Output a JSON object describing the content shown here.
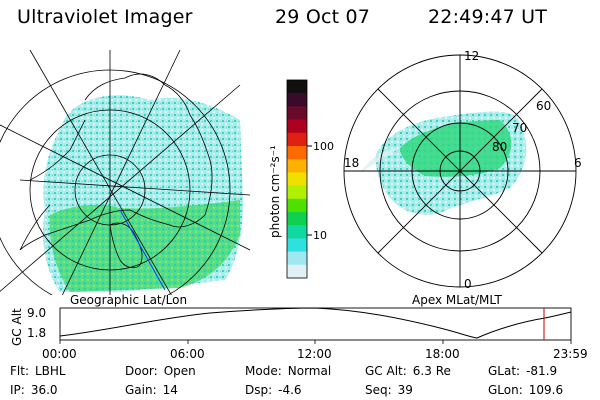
{
  "header": {
    "title": "Ultraviolet Imager",
    "date": "29 Oct 07",
    "time": "22:49:47 UT"
  },
  "colorbar": {
    "label": "photon cm⁻²s⁻¹",
    "ticks": [
      "100",
      "10"
    ],
    "colors_top_to_bottom": [
      "#101010",
      "#3a0a2a",
      "#6a0a2a",
      "#b00020",
      "#e02010",
      "#ff6a00",
      "#ffb000",
      "#f0e000",
      "#b0f000",
      "#50e000",
      "#10d050",
      "#10d8a0",
      "#30e0e0",
      "#a0e8f0",
      "#e0f0f4"
    ]
  },
  "left_panel": {
    "caption": "Geographic Lat/Lon"
  },
  "right_panel": {
    "caption": "Apex MLat/MLT",
    "mlt_labels": [
      "12",
      "6",
      "0",
      "18"
    ],
    "mlat_labels": [
      "60",
      "70",
      "80"
    ]
  },
  "altitude_plot": {
    "ylabel": "GC Alt",
    "yticks": [
      "9.0",
      "1.8"
    ],
    "xticks": [
      "00:00",
      "06:00",
      "12:00",
      "18:00",
      "23:59"
    ],
    "marker_color": "#c00000"
  },
  "footer": {
    "row1": [
      {
        "label": "Flt:",
        "value": "LBHL"
      },
      {
        "label": "Door:",
        "value": "Open"
      },
      {
        "label": "Mode:",
        "value": "Normal"
      },
      {
        "label": "GC Alt:",
        "value": "6.3 Re"
      },
      {
        "label": "GLat:",
        "value": "-81.9"
      }
    ],
    "row2": [
      {
        "label": "IP:",
        "value": "36.0"
      },
      {
        "label": "Gain:",
        "value": "14"
      },
      {
        "label": "Dsp:",
        "value": "-4.6"
      },
      {
        "label": "Seq:",
        "value": "39"
      },
      {
        "label": "GLon:",
        "value": "109.6"
      }
    ]
  }
}
